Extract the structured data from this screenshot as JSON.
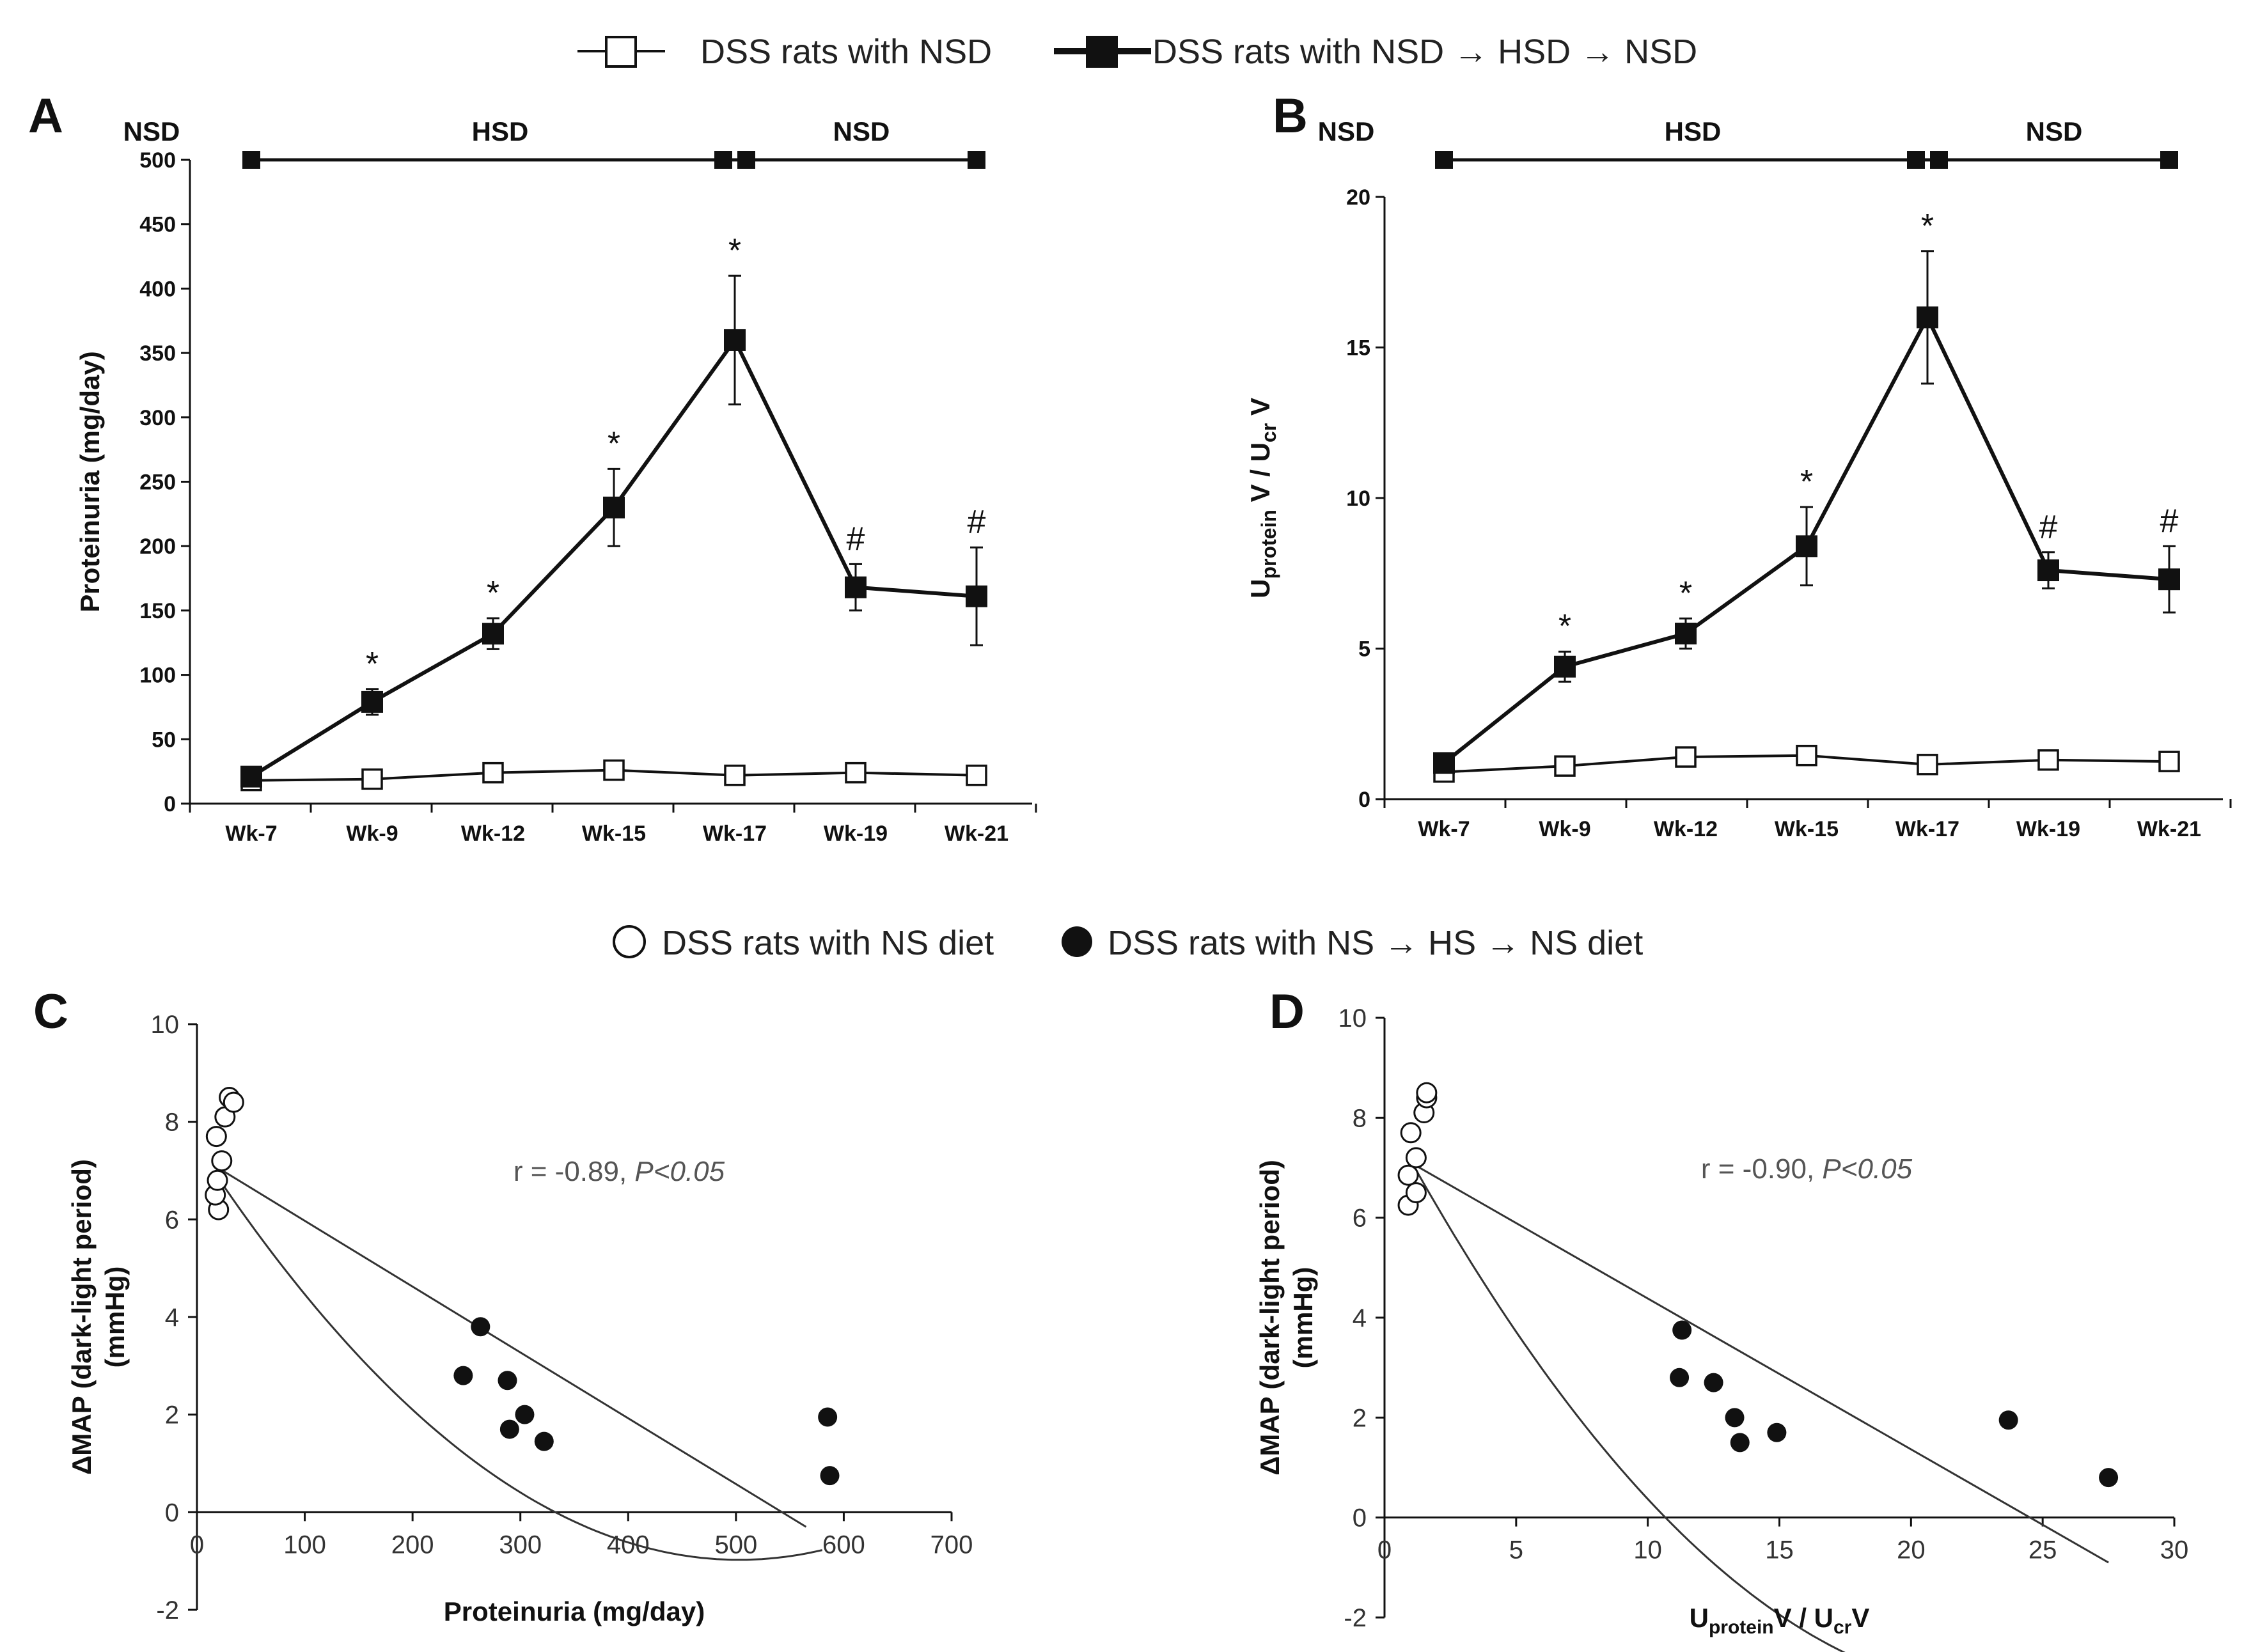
{
  "legend_top": {
    "ns": "DSS rats with NSD",
    "hs": "DSS rats with NSD → HSD → NSD"
  },
  "legend_bottom": {
    "ns": "DSS rats with NS diet",
    "hs": "DSS rats with NS → HS → NS diet"
  },
  "colors": {
    "ink": "#111111",
    "fill_open": "#ffffff",
    "annotation": "#555555"
  },
  "chart_data": [
    {
      "panel": "A",
      "type": "line",
      "title": "",
      "xlabel": "",
      "ylabel": "Proteinuria (mg/day)",
      "categories": [
        "Wk-7",
        "Wk-9",
        "Wk-12",
        "Wk-15",
        "Wk-17",
        "Wk-19",
        "Wk-21"
      ],
      "ylim": [
        0,
        500
      ],
      "yticks": [
        0,
        50,
        100,
        150,
        200,
        250,
        300,
        350,
        400,
        450,
        500
      ],
      "diet_labels": [
        "NSD",
        "HSD",
        "NSD"
      ],
      "series": [
        {
          "name": "DSS rats with NSD",
          "marker": "open-square",
          "values": [
            18,
            19,
            24,
            26,
            22,
            24,
            22
          ],
          "errors": [
            0,
            0,
            0,
            0,
            0,
            0,
            0
          ]
        },
        {
          "name": "DSS rats with NSD → HSD → NSD",
          "marker": "filled-square",
          "values": [
            21,
            79,
            132,
            230,
            360,
            168,
            161
          ],
          "errors": [
            0,
            10,
            12,
            30,
            50,
            18,
            38
          ]
        }
      ],
      "significance": [
        "",
        "*",
        "*",
        "*",
        "*",
        "#",
        "#"
      ]
    },
    {
      "panel": "B",
      "type": "line",
      "title": "",
      "xlabel": "",
      "ylabel": {
        "main": "U",
        "sub1": "protein",
        "mid": " V / U",
        "sub2": "cr",
        "end": " V"
      },
      "categories": [
        "Wk-7",
        "Wk-9",
        "Wk-12",
        "Wk-15",
        "Wk-17",
        "Wk-19",
        "Wk-21"
      ],
      "ylim": [
        0,
        20
      ],
      "yticks": [
        0,
        5,
        10,
        15,
        20
      ],
      "diet_labels": [
        "NSD",
        "HSD",
        "NSD"
      ],
      "series": [
        {
          "name": "DSS rats with NSD",
          "marker": "open-square",
          "values": [
            0.9,
            1.1,
            1.4,
            1.45,
            1.15,
            1.3,
            1.25
          ],
          "errors": [
            0,
            0,
            0,
            0,
            0,
            0,
            0
          ]
        },
        {
          "name": "DSS rats with NSD → HSD → NSD",
          "marker": "filled-square",
          "values": [
            1.2,
            4.4,
            5.5,
            8.4,
            16.0,
            7.6,
            7.3
          ],
          "errors": [
            0,
            0.5,
            0.5,
            1.3,
            2.2,
            0.6,
            1.1
          ]
        }
      ],
      "significance": [
        "",
        "*",
        "*",
        "*",
        "*",
        "#",
        "#"
      ]
    },
    {
      "panel": "C",
      "type": "scatter",
      "xlabel": "Proteinuria (mg/day)",
      "ylabel": {
        "line1": "ΔMAP (dark-light period)",
        "line2": "(mmHg)"
      },
      "xlim": [
        0,
        700
      ],
      "ylim": [
        -2,
        10
      ],
      "xticks": [
        0,
        100,
        200,
        300,
        400,
        500,
        600,
        700
      ],
      "yticks": [
        -2,
        0,
        2,
        4,
        6,
        8,
        10
      ],
      "annotation": {
        "r": "r = -0.89, ",
        "p": "P<0.05"
      },
      "series": [
        {
          "name": "DSS rats with NS diet",
          "marker": "open-circle",
          "points": [
            [
              20,
              6.2
            ],
            [
              17,
              6.5
            ],
            [
              19,
              6.8
            ],
            [
              23,
              7.2
            ],
            [
              18,
              7.7
            ],
            [
              26,
              8.1
            ],
            [
              30,
              8.5
            ],
            [
              34,
              8.4
            ]
          ]
        },
        {
          "name": "DSS rats with NS → HS → NS diet",
          "marker": "filled-circle",
          "points": [
            [
              263,
              3.8
            ],
            [
              247,
              2.8
            ],
            [
              288,
              2.7
            ],
            [
              290,
              1.7
            ],
            [
              304,
              2.0
            ],
            [
              322,
              1.45
            ],
            [
              585,
              1.95
            ],
            [
              587,
              0.75
            ]
          ]
        }
      ],
      "linear_fit": {
        "x": [
          20,
          565
        ],
        "y": [
          7.05,
          -0.3
        ]
      },
      "quadratic_fit": {
        "a": 3.35e-05,
        "b": -0.0337,
        "c": 7.5,
        "x_range": [
          20,
          580
        ]
      }
    },
    {
      "panel": "D",
      "type": "scatter",
      "xlabel": {
        "main": "U",
        "sub1": "protein",
        "mid": "V / U",
        "sub2": "cr",
        "end": "V"
      },
      "ylabel": {
        "line1": "ΔMAP (dark-light period)",
        "line2": "(mmHg)"
      },
      "xlim": [
        0,
        30
      ],
      "ylim": [
        -2,
        10
      ],
      "xticks": [
        0,
        5,
        10,
        15,
        20,
        25,
        30
      ],
      "yticks": [
        -2,
        0,
        2,
        4,
        6,
        8,
        10
      ],
      "annotation": {
        "r": "r = -0.90, ",
        "p": "P<0.05"
      },
      "series": [
        {
          "name": "DSS rats with NS diet",
          "marker": "open-circle",
          "points": [
            [
              0.9,
              6.25
            ],
            [
              1.2,
              6.5
            ],
            [
              0.9,
              6.85
            ],
            [
              1.2,
              7.2
            ],
            [
              1.0,
              7.7
            ],
            [
              1.5,
              8.1
            ],
            [
              1.6,
              8.4
            ],
            [
              1.6,
              8.5
            ]
          ]
        },
        {
          "name": "DSS rats with NS → HS → NS diet",
          "marker": "filled-circle",
          "points": [
            [
              11.3,
              3.75
            ],
            [
              11.2,
              2.8
            ],
            [
              12.5,
              2.7
            ],
            [
              13.3,
              2.0
            ],
            [
              13.5,
              1.5
            ],
            [
              14.9,
              1.7
            ],
            [
              23.7,
              1.95
            ],
            [
              27.5,
              0.8
            ]
          ]
        }
      ],
      "linear_fit": {
        "x": [
          1,
          27.5
        ],
        "y": [
          7.1,
          -0.9
        ]
      },
      "quadratic_fit": {
        "a": 0.0207,
        "b": -0.98,
        "c": 8.1,
        "x_range": [
          1,
          27.5
        ]
      }
    }
  ]
}
